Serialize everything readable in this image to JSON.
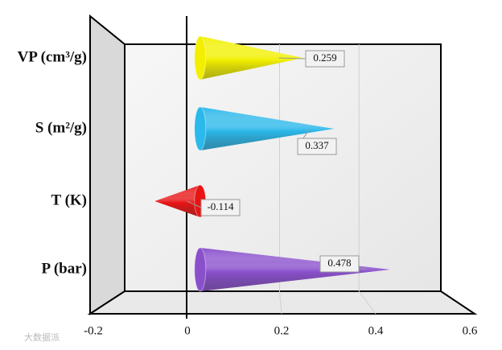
{
  "chart_data": {
    "type": "bar",
    "orientation": "horizontal",
    "shape": "cone",
    "categories": [
      "VP (cm³/g)",
      "S (m²/g)",
      "T (K)",
      "P (bar)"
    ],
    "values": [
      0.259,
      0.337,
      -0.114,
      0.478
    ],
    "colors": [
      "#f2f000",
      "#2bb8ea",
      "#e81414",
      "#8a50cc"
    ],
    "xlim": [
      -0.2,
      0.6
    ],
    "xticks": [
      -0.2,
      0,
      0.2,
      0.4,
      0.6
    ],
    "grid": true,
    "watermark": "大数据派"
  }
}
